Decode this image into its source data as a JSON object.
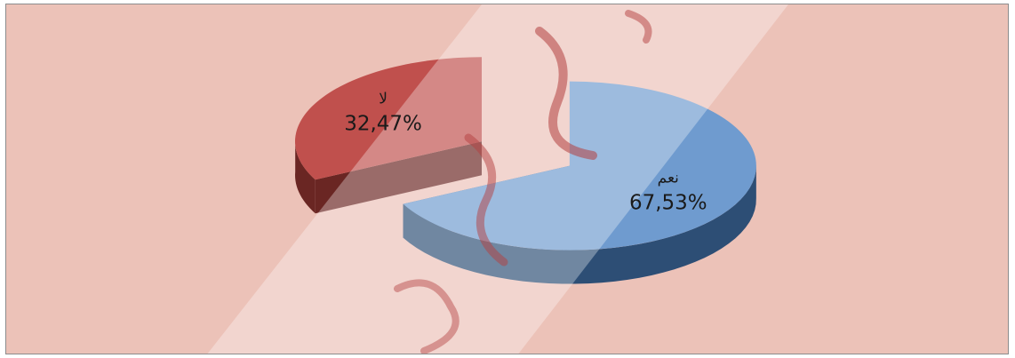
{
  "chart_data": {
    "type": "pie",
    "style": "3d-exploded",
    "title": "",
    "legend": "none",
    "slices": [
      {
        "label": "نعم",
        "value": 67.53,
        "value_text": "67,53%",
        "color": "#6f9bcf",
        "side_color": "#2d4e75"
      },
      {
        "label": "لا",
        "value": 32.47,
        "value_text": "32,47%",
        "color": "#c0504d",
        "side_color": "#6a2623"
      }
    ]
  },
  "colors": {
    "background": "#ecc2b8",
    "frame_border": "#8c8c8c",
    "watermark_band": "#ffffff"
  }
}
